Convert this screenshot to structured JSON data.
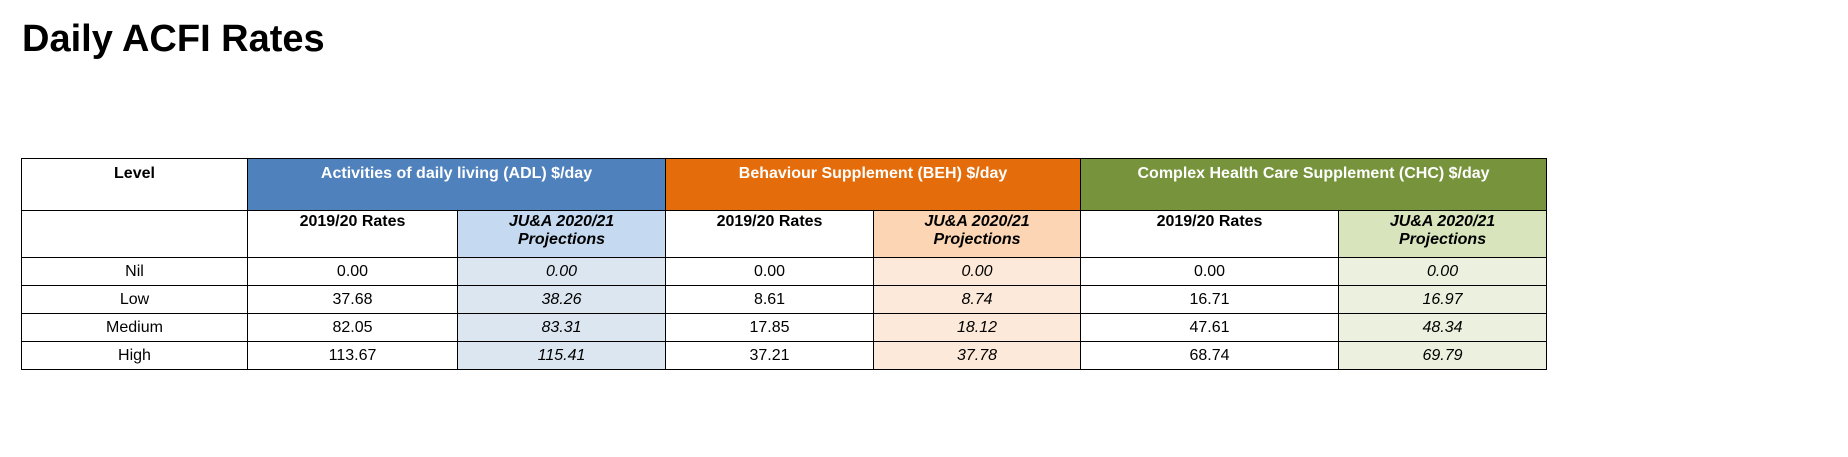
{
  "title": "Daily ACFI Rates",
  "table": {
    "level_header": "Level",
    "groups": [
      {
        "label": "Activities of daily living (ADL) $/day",
        "color": "#4f81bd"
      },
      {
        "label": "Behaviour Supplement (BEH) $/day",
        "color": "#e46c0a"
      },
      {
        "label": "Complex Health Care Supplement (CHC) $/day",
        "color": "#77933c"
      }
    ],
    "subheaders": {
      "rates": "2019/20 Rates",
      "proj_line1": "JU&A 2020/21",
      "proj_line2": "Projections"
    },
    "rows": [
      {
        "level": "Nil",
        "values": [
          "0.00",
          "0.00",
          "0.00",
          "0.00",
          "0.00",
          "0.00"
        ]
      },
      {
        "level": "Low",
        "values": [
          "37.68",
          "38.26",
          "8.61",
          "8.74",
          "16.71",
          "16.97"
        ]
      },
      {
        "level": "Medium",
        "values": [
          "82.05",
          "83.31",
          "17.85",
          "18.12",
          "47.61",
          "48.34"
        ]
      },
      {
        "level": "High",
        "values": [
          "113.67",
          "115.41",
          "37.21",
          "37.78",
          "68.74",
          "69.79"
        ]
      }
    ]
  }
}
